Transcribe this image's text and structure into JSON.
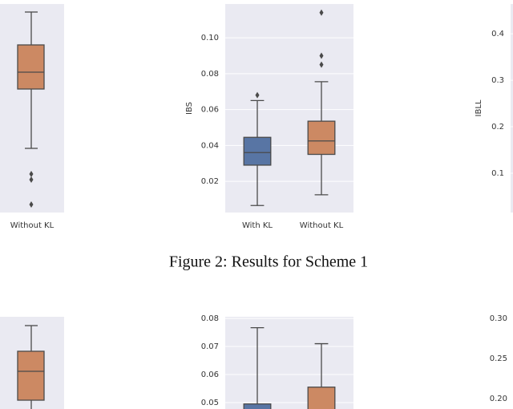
{
  "figure_top": {
    "left_panel": {
      "xlabel": "Without KL"
    },
    "middle_panel": {
      "type": "box",
      "ylabel": "IBS",
      "categories": [
        "With KL",
        "Without KL"
      ],
      "colors": [
        "#5875a4",
        "#cc8963"
      ],
      "ylim": [
        0.0026,
        0.1188
      ],
      "yticks": [
        0.02,
        0.04,
        0.06,
        0.08,
        {
          "value": 0.1,
          "label": "0.10"
        }
      ],
      "boxes": [
        {
          "whisker_low": 0.0065,
          "q1": 0.029,
          "median": 0.036,
          "q3": 0.0445,
          "whisker_high": 0.065,
          "outliers": [
            0.068
          ]
        },
        {
          "whisker_low": 0.0125,
          "q1": 0.035,
          "median": 0.0425,
          "q3": 0.0535,
          "whisker_high": 0.0755,
          "outliers": [
            0.085,
            0.09,
            0.114
          ]
        }
      ]
    },
    "right_panel": {
      "type": "box",
      "ylabel": "IBLL",
      "ylim": [
        0.0155,
        0.464
      ],
      "yticks": [
        0.1,
        0.2,
        0.3,
        0.4
      ]
    },
    "caption": "Figure 2: Results for Scheme 1"
  },
  "figure_bottom": {
    "middle_panel": {
      "type": "box",
      "colors": [
        "#5875a4",
        "#cc8963"
      ],
      "ylim": [
        0.0477,
        0.0806
      ],
      "yticks": [
        0.05,
        0.06,
        0.07,
        0.08
      ],
      "boxes": [
        {
          "q3": 0.0495,
          "whisker_high": 0.0767
        },
        {
          "q3": 0.0555,
          "whisker_high": 0.071
        }
      ]
    },
    "right_panel": {
      "type": "box",
      "ylim": [
        0.187,
        0.302
      ],
      "yticks": [
        {
          "value": 0.2,
          "label": "0.20"
        },
        0.25,
        {
          "value": 0.3,
          "label": "0.30"
        }
      ]
    }
  }
}
